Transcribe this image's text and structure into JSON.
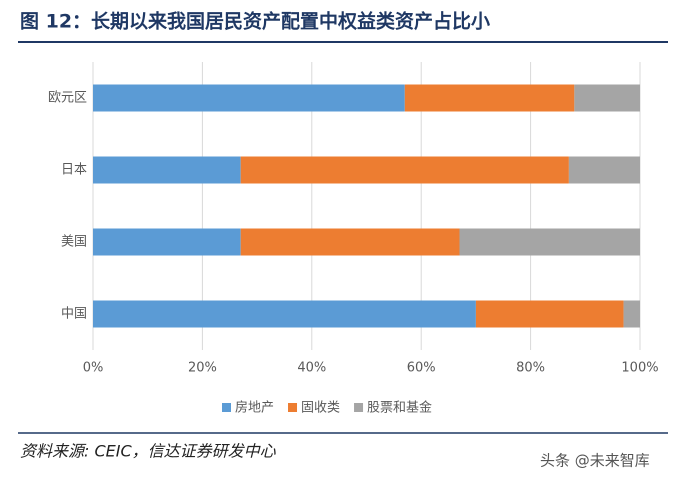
{
  "chart_data": {
    "type": "stacked-barh",
    "title": "图 12：长期以来我国居民资产配置中权益类资产占比小",
    "categories": [
      "欧元区",
      "日本",
      "美国",
      "中国"
    ],
    "series": [
      {
        "name": "房地产",
        "color": "#5b9bd5",
        "values": [
          57,
          27,
          27,
          70
        ]
      },
      {
        "name": "固收类",
        "color": "#ed7d31",
        "values": [
          31,
          60,
          40,
          27
        ]
      },
      {
        "name": "股票和基金",
        "color": "#a5a5a5",
        "values": [
          12,
          13,
          33,
          3
        ]
      }
    ],
    "xlim": [
      0,
      100
    ],
    "xticks": [
      {
        "value": 0,
        "label": "0%"
      },
      {
        "value": 20,
        "label": "20%"
      },
      {
        "value": 40,
        "label": "40%"
      },
      {
        "value": 60,
        "label": "60%"
      },
      {
        "value": 80,
        "label": "80%"
      },
      {
        "value": 100,
        "label": "100%"
      }
    ],
    "grid": true,
    "source": "资料来源: CEIC，信达证券研发中心",
    "watermark": "头条 @未来智库"
  }
}
